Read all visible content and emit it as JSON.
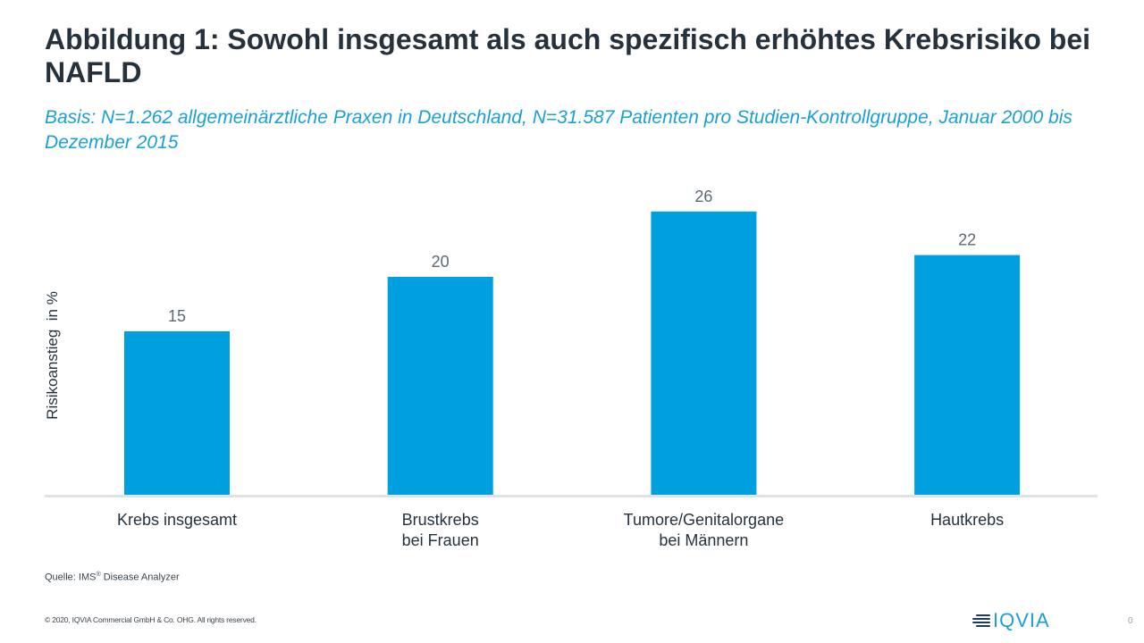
{
  "header": {
    "title": "Abbildung 1: Sowohl insgesamt als auch spezifisch erhöhtes Krebsrisiko bei NAFLD",
    "subtitle": "Basis: N=1.262 allgemeinärztliche Praxen in Deutschland, N=31.587 Patienten pro Studien-Kontrollgruppe, Januar 2000 bis Dezember 2015"
  },
  "chart_data": {
    "type": "bar",
    "title": "Abbildung 1: Sowohl insgesamt als auch spezifisch erhöhtes Krebsrisiko bei NAFLD",
    "xlabel": "",
    "ylabel": "Risikoanstieg  in %",
    "categories": [
      [
        "Krebs insgesamt"
      ],
      [
        "Brustkrebs",
        "bei Frauen"
      ],
      [
        "Tumore/Genitalorgane",
        "bei Männern"
      ],
      [
        "Hautkrebs"
      ]
    ],
    "values": [
      15,
      20,
      26,
      22
    ],
    "data_labels": [
      "15",
      "20",
      "26",
      "22"
    ],
    "ylim": [
      0,
      28
    ],
    "grid": false,
    "legend": "none",
    "bar_color": "#009fdf",
    "axis_color": "#dde3e6",
    "label_color": "#5a6a76"
  },
  "footer": {
    "source_prefix": "Quelle: IMS",
    "source_mark": "®",
    "source_suffix": " Disease Analyzer",
    "copyright": "© 2020, IQVIA Commercial GmbH & Co. OHG. All rights reserved.",
    "logo_text": "IQVIA",
    "page_number": "0"
  }
}
